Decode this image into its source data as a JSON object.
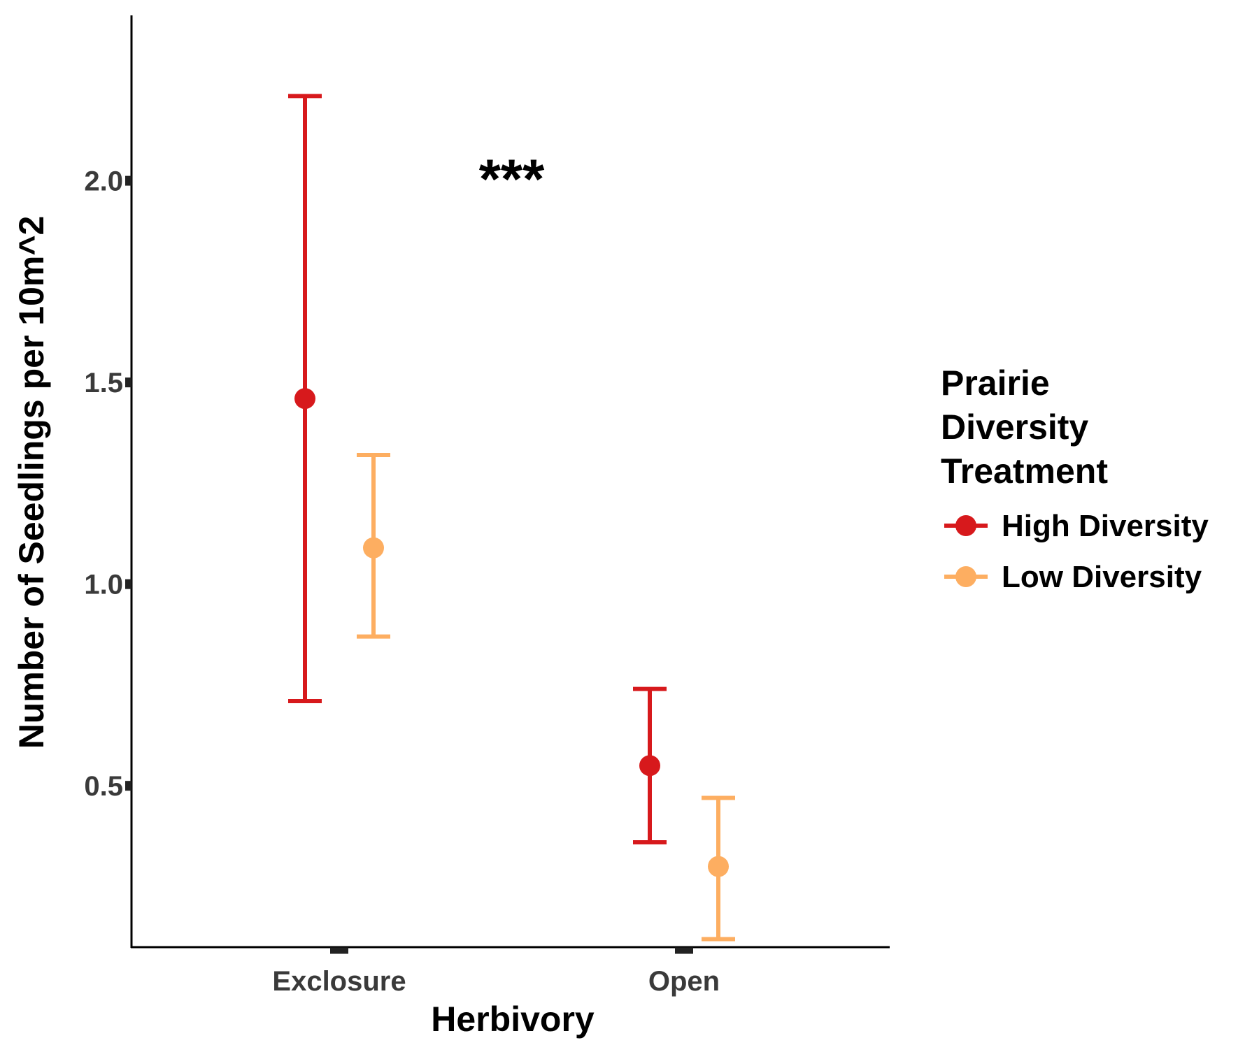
{
  "chart_data": {
    "type": "scatter",
    "subtype": "point-errorbar",
    "xlabel": "Herbivory",
    "ylabel": "Number of Seedlings per 10m^2",
    "categories": [
      "Exclosure",
      "Open"
    ],
    "yticks": [
      "0.5",
      "1.0",
      "1.5",
      "2.0"
    ],
    "ytick_values": [
      0.5,
      1.0,
      1.5,
      2.0
    ],
    "ylim": [
      0.1,
      2.41
    ],
    "grid": false,
    "legend": {
      "title": [
        "Prairie",
        "Diversity",
        "Treatment"
      ],
      "position": "right"
    },
    "series": [
      {
        "name": "High Diversity",
        "color": "#d7191c",
        "values": [
          1.46,
          0.55
        ],
        "lower": [
          0.71,
          0.36
        ],
        "upper": [
          2.21,
          0.74
        ]
      },
      {
        "name": "Low Diversity",
        "color": "#fdae61",
        "values": [
          1.09,
          0.3
        ],
        "lower": [
          0.87,
          0.12
        ],
        "upper": [
          1.32,
          0.47
        ]
      }
    ],
    "annotations": [
      {
        "text": "***",
        "x_between": [
          0,
          1
        ],
        "y": 2.0
      }
    ]
  }
}
